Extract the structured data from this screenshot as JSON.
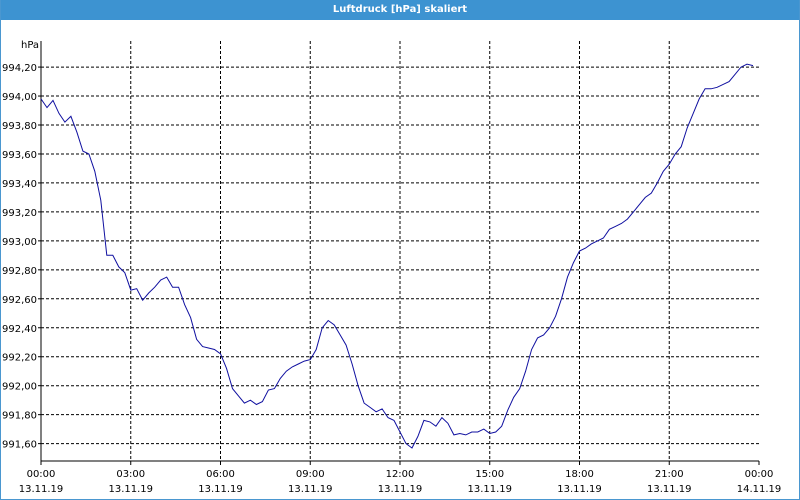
{
  "window": {
    "title": "Luftdruck [hPa] skaliert"
  },
  "chart_data": {
    "type": "line",
    "title": "Luftdruck [hPa] skaliert",
    "ylabel": "hPa",
    "xlabel": "",
    "xlim": [
      0,
      24
    ],
    "ylim": [
      991.48,
      994.38
    ],
    "grid": true,
    "line_color": "#1010a0",
    "yticks": [
      991.6,
      991.8,
      992.0,
      992.2,
      992.4,
      992.6,
      992.8,
      993.0,
      993.2,
      993.4,
      993.6,
      993.8,
      994.0,
      994.2
    ],
    "ytick_labels": [
      "991,60",
      "991,80",
      "992,00",
      "992,20",
      "992,40",
      "992,60",
      "992,80",
      "993,00",
      "993,20",
      "993,40",
      "993,60",
      "993,80",
      "994,00",
      "994,20"
    ],
    "xticks": [
      {
        "time": "00:00",
        "date": "13.11.19"
      },
      {
        "time": "03:00",
        "date": "13.11.19"
      },
      {
        "time": "06:00",
        "date": "13.11.19"
      },
      {
        "time": "09:00",
        "date": "13.11.19"
      },
      {
        "time": "12:00",
        "date": "13.11.19"
      },
      {
        "time": "15:00",
        "date": "13.11.19"
      },
      {
        "time": "18:00",
        "date": "13.11.19"
      },
      {
        "time": "21:00",
        "date": "13.11.19"
      },
      {
        "time": "00:00",
        "date": "14.11.19"
      }
    ],
    "x": [
      0,
      0.2,
      0.4,
      0.6,
      0.8,
      1.0,
      1.2,
      1.4,
      1.6,
      1.8,
      2.0,
      2.2,
      2.4,
      2.6,
      2.8,
      3.0,
      3.2,
      3.4,
      3.6,
      3.8,
      4.0,
      4.2,
      4.4,
      4.6,
      4.8,
      5.0,
      5.2,
      5.4,
      5.6,
      5.8,
      6.0,
      6.2,
      6.4,
      6.6,
      6.8,
      7.0,
      7.2,
      7.4,
      7.6,
      7.8,
      8.0,
      8.2,
      8.4,
      8.6,
      8.8,
      9.0,
      9.2,
      9.4,
      9.6,
      9.8,
      10.0,
      10.2,
      10.4,
      10.6,
      10.8,
      11.0,
      11.2,
      11.4,
      11.6,
      11.8,
      12.0,
      12.2,
      12.4,
      12.6,
      12.8,
      13.0,
      13.2,
      13.4,
      13.6,
      13.8,
      14.0,
      14.2,
      14.4,
      14.6,
      14.8,
      15.0,
      15.2,
      15.4,
      15.6,
      15.8,
      16.0,
      16.2,
      16.4,
      16.6,
      16.8,
      17.0,
      17.2,
      17.4,
      17.6,
      17.8,
      18.0,
      18.2,
      18.4,
      18.6,
      18.8,
      19.0,
      19.2,
      19.4,
      19.6,
      19.8,
      20.0,
      20.2,
      20.4,
      20.6,
      20.8,
      21.0,
      21.2,
      21.4,
      21.6,
      21.8,
      22.0,
      22.2,
      22.4,
      22.6,
      22.8,
      23.0,
      23.2,
      23.4,
      23.6,
      23.8
    ],
    "series": [
      {
        "values": [
          993.98,
          993.92,
          993.97,
          993.88,
          993.82,
          993.86,
          993.75,
          993.62,
          993.6,
          993.48,
          993.28,
          992.9,
          992.9,
          992.82,
          992.78,
          992.66,
          992.67,
          992.59,
          992.64,
          992.68,
          992.73,
          992.75,
          992.68,
          992.68,
          992.56,
          992.47,
          992.32,
          992.27,
          992.26,
          992.25,
          992.22,
          992.12,
          991.98,
          991.93,
          991.88,
          991.9,
          991.87,
          991.89,
          991.97,
          991.98,
          992.05,
          992.1,
          992.13,
          992.15,
          992.17,
          992.18,
          992.25,
          992.4,
          992.45,
          992.42,
          992.35,
          992.28,
          992.15,
          992.0,
          991.88,
          991.85,
          991.82,
          991.84,
          991.78,
          991.76,
          991.68,
          991.6,
          991.57,
          991.65,
          991.76,
          991.75,
          991.72,
          991.78,
          991.74,
          991.66,
          991.67,
          991.66,
          991.68,
          991.68,
          991.7,
          991.67,
          991.68,
          991.72,
          991.83,
          991.92,
          991.98,
          992.1,
          992.25,
          992.33,
          992.35,
          992.4,
          992.48,
          992.6,
          992.75,
          992.85,
          992.93,
          992.95,
          992.98,
          993.0,
          993.02,
          993.08,
          993.1,
          993.12,
          993.15,
          993.2,
          993.25,
          993.3,
          993.33,
          993.4,
          993.48,
          993.53,
          993.6,
          993.65,
          993.78,
          993.88,
          993.98,
          994.05,
          994.05,
          994.06,
          994.08,
          994.1,
          994.15,
          994.2,
          994.22,
          994.21
        ]
      }
    ]
  }
}
